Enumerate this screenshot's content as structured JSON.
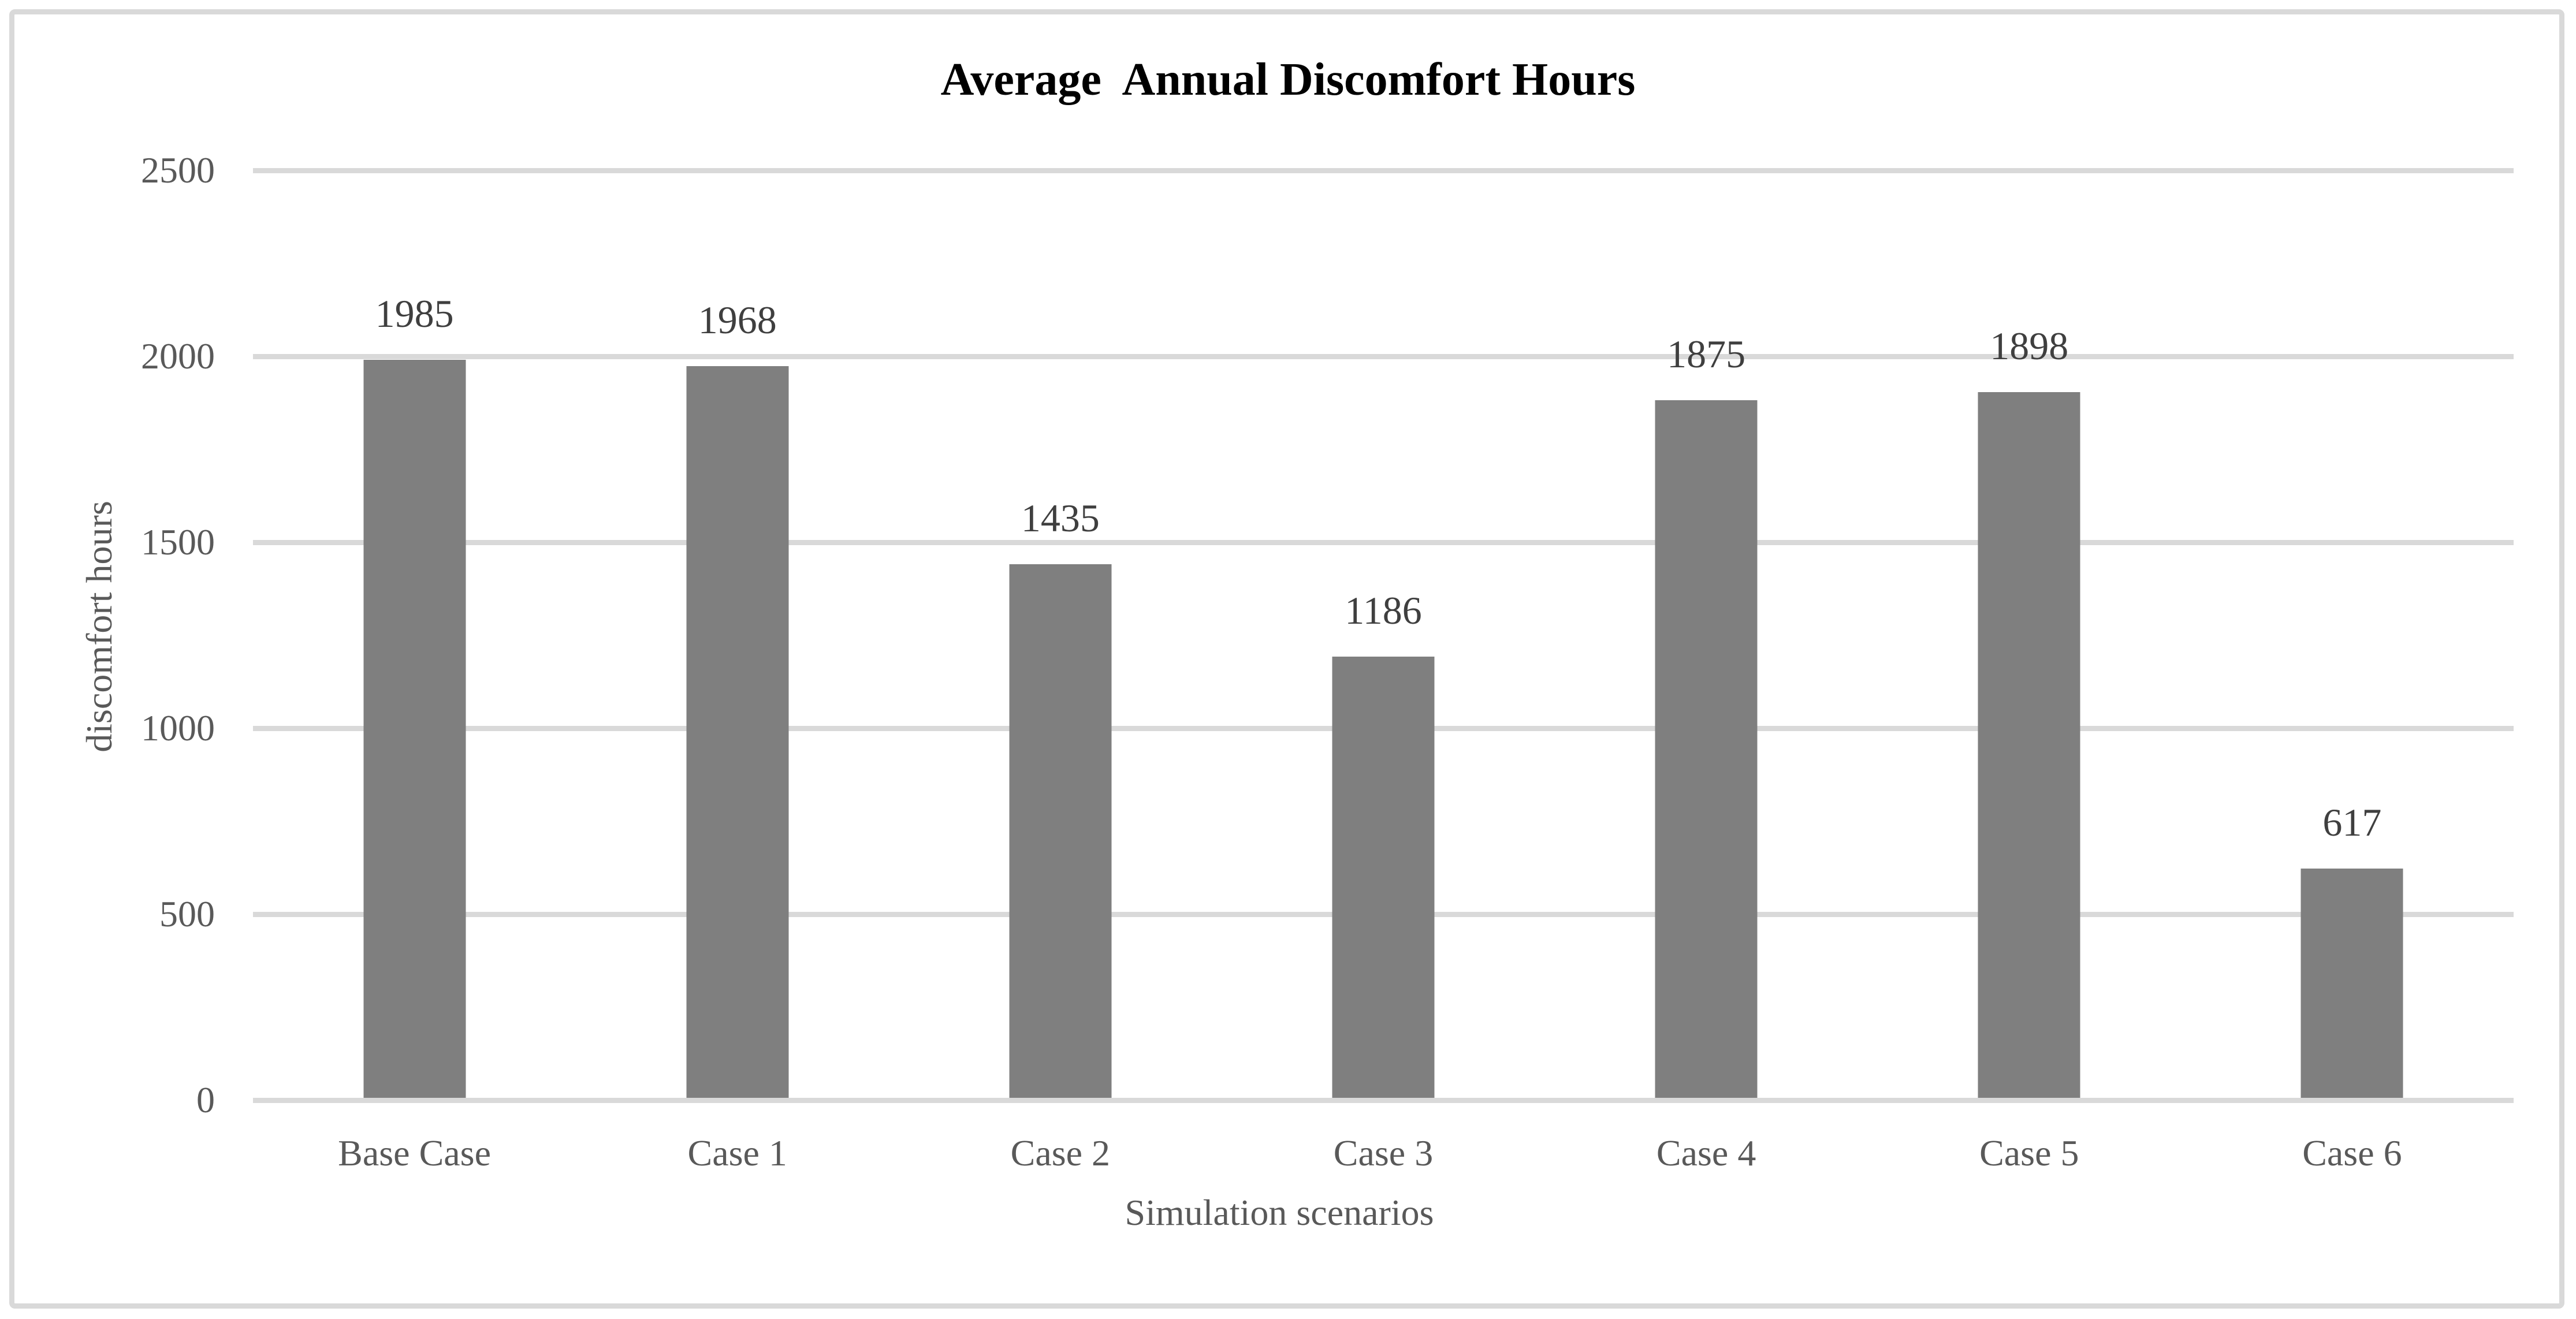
{
  "chart_data": {
    "type": "bar",
    "title": "Average  Annual Discomfort Hours",
    "categories": [
      "Base Case",
      "Case 1",
      "Case 2",
      "Case 3",
      "Case 4",
      "Case 5",
      "Case 6"
    ],
    "values": [
      1985,
      1968,
      1435,
      1186,
      1875,
      1898,
      617
    ],
    "data_labels": [
      "1985",
      "1968",
      "1435",
      "1186",
      "1875",
      "1898",
      "617"
    ],
    "xlabel": "Simulation scenarios",
    "ylabel": "discomfort hours",
    "ylim": [
      0,
      2500
    ],
    "yticks": [
      0,
      500,
      1000,
      1500,
      2000,
      2500
    ],
    "grid": true,
    "legend_position": "none",
    "colors": {
      "bar_fill": "#7f7f7f",
      "gridline": "#d9d9d9",
      "title_text": "#000000",
      "axis_text": "#595959",
      "data_label_text": "#3f3f3f",
      "frame_border": "#d9d9d9"
    }
  }
}
